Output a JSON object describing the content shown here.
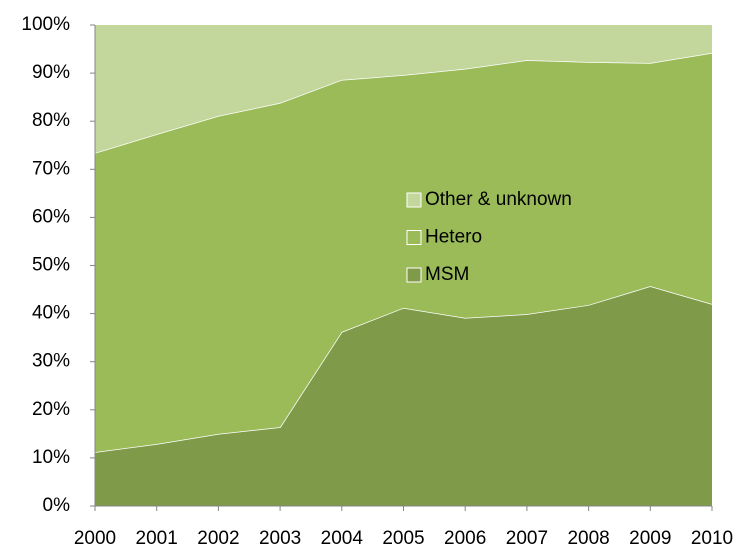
{
  "chart_data": {
    "type": "stacked_area",
    "categories": [
      "2000",
      "2001",
      "2002",
      "2003",
      "2004",
      "2005",
      "2006",
      "2007",
      "2008",
      "2009",
      "2010"
    ],
    "series": [
      {
        "name": "MSM",
        "color": "#7f9a48",
        "values": [
          11.2,
          12.9,
          15,
          16.4,
          36.2,
          41.2,
          39.1,
          39.9,
          41.8,
          45.7,
          42
        ]
      },
      {
        "name": "Hetero",
        "color": "#9bbb59",
        "values": [
          62.2,
          64.4,
          66.1,
          67.4,
          52.4,
          48.4,
          51.8,
          52.8,
          50.5,
          46.4,
          52.2
        ]
      },
      {
        "name": "Other & unknown",
        "color": "#c3d69b",
        "values": [
          26.6,
          22.7,
          18.9,
          16.2,
          11.4,
          10.4,
          9.1,
          7.3,
          7.7,
          7.9,
          5.8
        ]
      }
    ],
    "ylim": [
      0,
      100
    ],
    "yticks": [
      {
        "value": 0,
        "label": "0%"
      },
      {
        "value": 10,
        "label": "10%"
      },
      {
        "value": 20,
        "label": "20%"
      },
      {
        "value": 30,
        "label": "30%"
      },
      {
        "value": 40,
        "label": "40%"
      },
      {
        "value": 50,
        "label": "50%"
      },
      {
        "value": 60,
        "label": "60%"
      },
      {
        "value": 70,
        "label": "70%"
      },
      {
        "value": 80,
        "label": "80%"
      },
      {
        "value": 90,
        "label": "90%"
      },
      {
        "value": 100,
        "label": "100%"
      }
    ],
    "grid": false
  }
}
